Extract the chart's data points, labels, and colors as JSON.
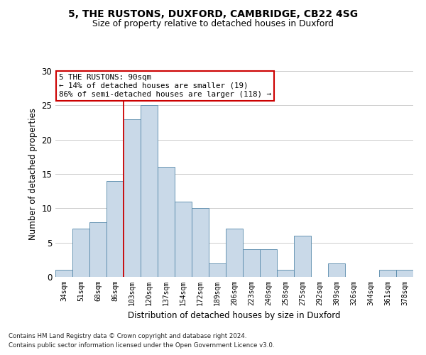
{
  "title1": "5, THE RUSTONS, DUXFORD, CAMBRIDGE, CB22 4SG",
  "title2": "Size of property relative to detached houses in Duxford",
  "xlabel": "Distribution of detached houses by size in Duxford",
  "ylabel": "Number of detached properties",
  "categories": [
    "34sqm",
    "51sqm",
    "68sqm",
    "86sqm",
    "103sqm",
    "120sqm",
    "137sqm",
    "154sqm",
    "172sqm",
    "189sqm",
    "206sqm",
    "223sqm",
    "240sqm",
    "258sqm",
    "275sqm",
    "292sqm",
    "309sqm",
    "326sqm",
    "344sqm",
    "361sqm",
    "378sqm"
  ],
  "values": [
    1,
    7,
    8,
    14,
    23,
    25,
    16,
    11,
    10,
    2,
    7,
    4,
    4,
    1,
    6,
    0,
    2,
    0,
    0,
    1,
    1
  ],
  "bar_color": "#c9d9e8",
  "bar_edge_color": "#5588aa",
  "annotation_box_text": "5 THE RUSTONS: 90sqm\n← 14% of detached houses are smaller (19)\n86% of semi-detached houses are larger (118) →",
  "annotation_box_color": "#ffffff",
  "annotation_box_edge_color": "#cc0000",
  "vline_color": "#cc0000",
  "vline_x": 3.5,
  "grid_color": "#cccccc",
  "background_color": "#ffffff",
  "footnote1": "Contains HM Land Registry data © Crown copyright and database right 2024.",
  "footnote2": "Contains public sector information licensed under the Open Government Licence v3.0.",
  "ylim": [
    0,
    30
  ],
  "yticks": [
    0,
    5,
    10,
    15,
    20,
    25,
    30
  ]
}
